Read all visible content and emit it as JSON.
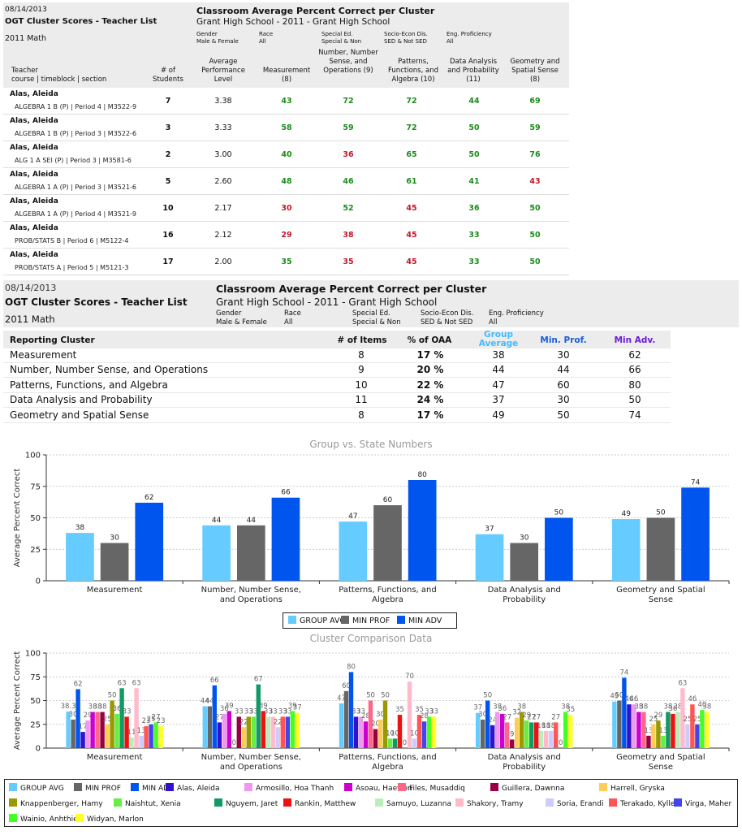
{
  "report1": {
    "date": "08/14/2013",
    "title": "OGT Cluster Scores - Teacher List",
    "subject": "2011 Math",
    "heading": "Classroom Average Percent Correct per Cluster",
    "school": "Grant High School - 2011 - Grant High School",
    "filters": [
      {
        "label": "Gender",
        "value": "Male & Female"
      },
      {
        "label": "Race",
        "value": "All"
      },
      {
        "label": "Special Ed.",
        "value": "Special & Non"
      },
      {
        "label": "Socio-Econ Dis.",
        "value": "SED & Not SED"
      },
      {
        "label": "Eng. Proficiency",
        "value": "All"
      }
    ],
    "columns": {
      "teacher": "Teacher",
      "course": "course | timeblock | section",
      "students": "# of Students",
      "avg_level": "Average Performance Level",
      "measurement": "Measurement (8)",
      "number": "Number, Number Sense, and Operations (9)",
      "patterns": "Patterns, Functions, and Algebra (10)",
      "data": "Data Analysis and Probability (11)",
      "geometry": "Geometry and Spatial Sense (8)"
    },
    "rows": [
      {
        "name": "Alas, Aleida",
        "course": "ALGEBRA 1 B (P) | Period 4 | M3522-9",
        "students": "7",
        "level": "3.38",
        "scores": [
          "43",
          "72",
          "72",
          "44",
          "69"
        ]
      },
      {
        "name": "Alas, Aleida",
        "course": "ALGEBRA 1 B (P) | Period 3 | M3522-6",
        "students": "3",
        "level": "3.33",
        "scores": [
          "58",
          "59",
          "72",
          "50",
          "59"
        ]
      },
      {
        "name": "Alas, Aleida",
        "course": "ALG 1 A SEI (P) | Period 3 | M3581-6",
        "students": "2",
        "level": "3.00",
        "scores": [
          "40",
          "36",
          "65",
          "50",
          "76"
        ]
      },
      {
        "name": "Alas, Aleida",
        "course": "ALGEBRA 1 A (P) | Period 3 | M3521-6",
        "students": "5",
        "level": "2.60",
        "scores": [
          "48",
          "46",
          "61",
          "41",
          "43"
        ]
      },
      {
        "name": "Alas, Aleida",
        "course": "ALGEBRA 1 A (P) | Period 4 | M3521-9",
        "students": "10",
        "level": "2.17",
        "scores": [
          "30",
          "52",
          "45",
          "36",
          "50"
        ]
      },
      {
        "name": "Alas, Aleida",
        "course": "PROB/STATS B | Period 6 | M5122-4",
        "students": "16",
        "level": "2.12",
        "scores": [
          "29",
          "38",
          "45",
          "33",
          "50"
        ]
      },
      {
        "name": "Alas, Aleida",
        "course": "PROB/STATS A | Period 5 | M5121-3",
        "students": "17",
        "level": "2.00",
        "scores": [
          "35",
          "35",
          "45",
          "33",
          "50"
        ]
      }
    ],
    "score_colors": [
      [
        "g",
        "g",
        "g",
        "g",
        "g"
      ],
      [
        "g",
        "g",
        "g",
        "g",
        "g"
      ],
      [
        "g",
        "r",
        "g",
        "g",
        "g"
      ],
      [
        "g",
        "g",
        "g",
        "g",
        "r"
      ],
      [
        "r",
        "g",
        "r",
        "g",
        "g"
      ],
      [
        "r",
        "r",
        "r",
        "g",
        "g"
      ],
      [
        "g",
        "r",
        "r",
        "g",
        "g"
      ]
    ]
  },
  "report2": {
    "date": "08/14/2013",
    "title": "OGT Cluster Scores - Teacher List",
    "subject": "2011 Math",
    "heading": "Classroom Average Percent Correct per Cluster",
    "school": "Grant High School - 2011 - Grant High School",
    "filters": [
      {
        "label": "Gender",
        "value": "Male & Female"
      },
      {
        "label": "Race",
        "value": "All"
      },
      {
        "label": "Special Ed.",
        "value": "Special & Non"
      },
      {
        "label": "Socio-Econ Dis.",
        "value": "SED & Not SED"
      },
      {
        "label": "Eng. Proficiency",
        "value": "All"
      }
    ],
    "columns": {
      "cluster": "Reporting Cluster",
      "items": "# of Items",
      "oaa": "% of OAA",
      "group_avg": "Group Average",
      "min_prof": "Min. Prof.",
      "min_adv": "Min Adv."
    },
    "rows": [
      {
        "cluster": "Measurement",
        "items": "8",
        "oaa": "17 %",
        "group_avg": "38",
        "min_prof": "30",
        "min_adv": "62"
      },
      {
        "cluster": "Number, Number Sense, and Operations",
        "items": "9",
        "oaa": "20 %",
        "group_avg": "44",
        "min_prof": "44",
        "min_adv": "66"
      },
      {
        "cluster": "Patterns, Functions, and Algebra",
        "items": "10",
        "oaa": "22 %",
        "group_avg": "47",
        "min_prof": "60",
        "min_adv": "80"
      },
      {
        "cluster": "Data Analysis and Probability",
        "items": "11",
        "oaa": "24 %",
        "group_avg": "37",
        "min_prof": "30",
        "min_adv": "50"
      },
      {
        "cluster": "Geometry and Spatial Sense",
        "items": "8",
        "oaa": "17 %",
        "group_avg": "49",
        "min_prof": "50",
        "min_adv": "74"
      }
    ]
  },
  "colors": {
    "group_avg": "#66ccff",
    "min_prof": "#666666",
    "min_adv": "#0055ee",
    "green": "#1a8c1a",
    "red": "#c0182c",
    "group_header": "#44bbff",
    "min_prof_header": "#1a5fd6",
    "min_adv_header": "#6b1ad6"
  },
  "chart_data": [
    {
      "type": "bar",
      "title": "Group vs. State Numbers",
      "ylabel": "Average Percent Correct",
      "xlabel": "",
      "ylim": [
        0,
        100
      ],
      "yticks": [
        "0",
        "25",
        "50",
        "75",
        "100"
      ],
      "categories": [
        "Measurement",
        "Number, Number Sense, and Operations",
        "Patterns, Functions, and Algebra",
        "Data Analysis and Probability",
        "Geometry and Spatial Sense"
      ],
      "category_lines": [
        [
          "Measurement"
        ],
        [
          "Number, Number Sense,",
          "and Operations"
        ],
        [
          "Patterns, Functions, and",
          "Algebra"
        ],
        [
          "Data Analysis and",
          "Probability"
        ],
        [
          "Geometry and Spatial",
          "Sense"
        ]
      ],
      "grid": true,
      "legend": "bottom",
      "series": [
        {
          "name": "GROUP AVG",
          "color": "#66ccff",
          "values": [
            38,
            44,
            47,
            37,
            49
          ]
        },
        {
          "name": "MIN PROF",
          "color": "#666666",
          "values": [
            30,
            44,
            60,
            30,
            50
          ]
        },
        {
          "name": "MIN ADV",
          "color": "#0055ee",
          "values": [
            62,
            66,
            80,
            50,
            74
          ]
        }
      ]
    },
    {
      "type": "bar",
      "title": "Cluster Comparison Data",
      "ylabel": "Average Percent Correct",
      "xlabel": "",
      "ylim": [
        0,
        100
      ],
      "yticks": [
        "0",
        "25",
        "50",
        "75",
        "100"
      ],
      "categories": [
        "Measurement",
        "Number, Number Sense, and Operations",
        "Patterns, Functions, and Algebra",
        "Data Analysis and Probability",
        "Geometry and Spatial Sense"
      ],
      "category_lines": [
        [
          "Measurement"
        ],
        [
          "Number, Number Sense,",
          "and Operations"
        ],
        [
          "Patterns, Functions, and",
          "Algebra"
        ],
        [
          "Data Analysis and",
          "Probability"
        ],
        [
          "Geometry and Spatial",
          "Sense"
        ]
      ],
      "grid": true,
      "legend": "bottom",
      "series": [
        {
          "name": "GROUP AVG",
          "color": "#66ccff",
          "values": [
            38.3,
            44,
            47,
            37,
            49
          ]
        },
        {
          "name": "MIN PROF",
          "color": "#666666",
          "values": [
            30,
            44,
            60,
            30,
            50
          ]
        },
        {
          "name": "MIN ADV",
          "color": "#0055ee",
          "values": [
            62,
            66,
            80,
            50,
            74
          ]
        },
        {
          "name": "Alas, Aleida",
          "color": "#3311cc",
          "values": [
            17,
            27,
            33,
            24,
            46
          ]
        },
        {
          "name": "Armosillo, Hoa Thanh",
          "color": "#ee99ee",
          "values": [
            29,
            36,
            33,
            38,
            46
          ]
        },
        {
          "name": "Asoau, Haewon",
          "color": "#cc00cc",
          "values": [
            38,
            39,
            28,
            36,
            38
          ]
        },
        {
          "name": "Files, Musaddiq",
          "color": "#ff6688",
          "values": [
            38,
            0,
            50,
            27,
            38
          ]
        },
        {
          "name": "Guillera, Dawnna",
          "color": "#990044",
          "values": [
            38,
            33,
            20,
            9,
            13
          ]
        },
        {
          "name": "Harrell, Gryska",
          "color": "#ffcc55",
          "values": [
            25,
            22,
            30,
            32,
            25
          ]
        },
        {
          "name": "Knappenberger, Hamy",
          "color": "#999900",
          "values": [
            50,
            33,
            50,
            38,
            29
          ]
        },
        {
          "name": "Naishtut, Xenia",
          "color": "#66ee44",
          "values": [
            36,
            33,
            10,
            29,
            13
          ]
        },
        {
          "name": "Nguyem, Jaret",
          "color": "#119966",
          "values": [
            63,
            67,
            10,
            27,
            38
          ]
        },
        {
          "name": "Rankin, Matthew",
          "color": "#ee1111",
          "values": [
            33,
            39,
            35,
            27,
            36
          ]
        },
        {
          "name": "Samuyo, Luzanna",
          "color": "#bbeebb",
          "values": [
            11,
            33,
            0,
            18,
            38
          ]
        },
        {
          "name": "Shakory, Tramy",
          "color": "#ffbbcc",
          "values": [
            63,
            33,
            70,
            18,
            63
          ]
        },
        {
          "name": "Soria, Erandi",
          "color": "#ccccff",
          "values": [
            13,
            22,
            10,
            18,
            25
          ]
        },
        {
          "name": "Terakado, Kylle",
          "color": "#ff5555",
          "values": [
            23,
            33,
            35,
            27,
            46
          ]
        },
        {
          "name": "Virga, Maher",
          "color": "#4444ee",
          "values": [
            25,
            33,
            28,
            0,
            25
          ]
        },
        {
          "name": "Wainio, Anhthien",
          "color": "#44ff22",
          "values": [
            27,
            39,
            33,
            38,
            40
          ]
        },
        {
          "name": "Widyan, Marlon",
          "color": "#ffff22",
          "values": [
            23,
            37,
            33,
            35,
            38
          ]
        }
      ]
    }
  ]
}
